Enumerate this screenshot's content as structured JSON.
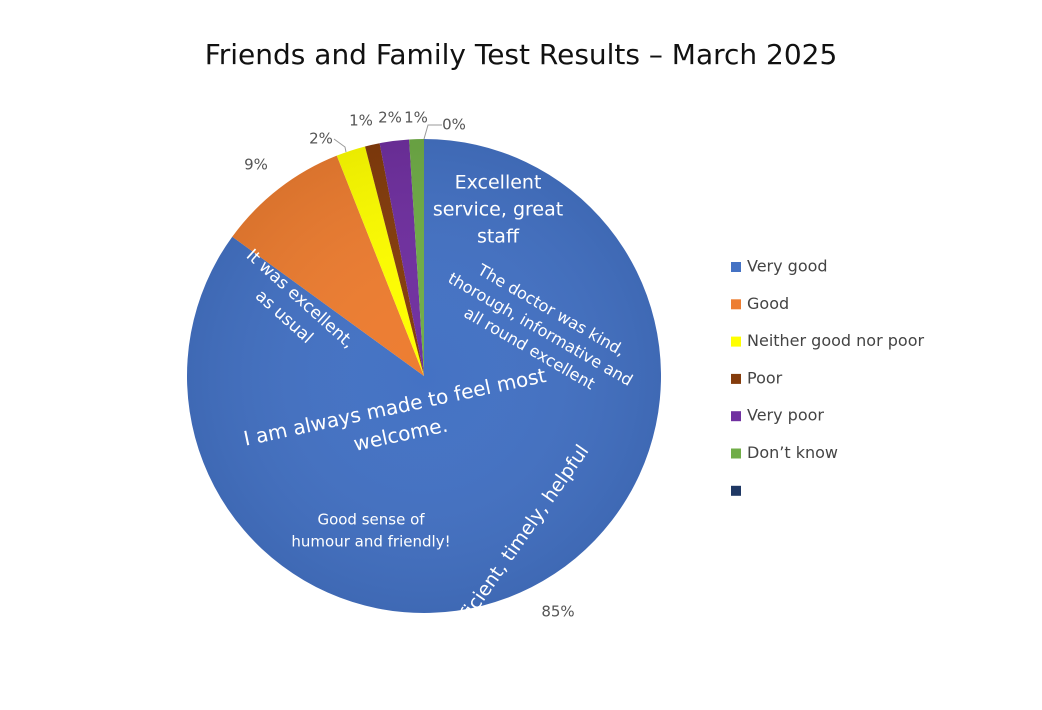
{
  "chart_data": {
    "type": "pie",
    "title": "Friends and Family Test Results – March 2025",
    "categories": [
      "Very good",
      "Good",
      "Neither good nor poor",
      "Poor",
      "Very poor",
      "Don’t know",
      null
    ],
    "values": [
      85,
      9,
      2,
      1,
      2,
      1,
      0
    ],
    "value_labels": [
      "85%",
      "9%",
      "2%",
      "1%",
      "2%",
      "1%",
      "0%"
    ],
    "colors": [
      "#4472c4",
      "#ed7d31",
      "#ffff00",
      "#843c0c",
      "#7030a0",
      "#70ad47",
      "#1f3864"
    ],
    "legend": "right",
    "annotations": [
      [
        "Excellent",
        "service, great",
        "staff"
      ],
      [
        "The doctor was kind,",
        "thorough, informative and",
        "all round excellent"
      ],
      [
        "It was excellent,",
        "as usual"
      ],
      [
        "I am always made to feel most",
        "welcome."
      ],
      [
        "Good sense of",
        "humour and friendly!"
      ],
      [
        "Efficient, timely, helpful"
      ]
    ]
  }
}
